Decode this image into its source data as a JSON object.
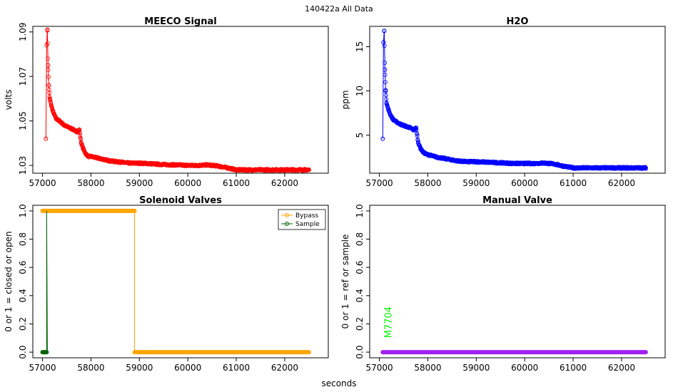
{
  "figure": {
    "title": "140422a   All Data",
    "xlabel": "seconds"
  },
  "chart_data": [
    {
      "type": "scatter",
      "title": "MEECO Signal",
      "xlabel": "",
      "ylabel": "volts",
      "xlim": [
        56800,
        62900
      ],
      "ylim": [
        1.0265,
        1.0925
      ],
      "xticks": [
        57000,
        58000,
        59000,
        60000,
        61000,
        62000
      ],
      "yticks": [
        1.03,
        1.05,
        1.07,
        1.09
      ],
      "ytick_labels": [
        "1.03",
        "1.05",
        "1.07",
        "1.09"
      ],
      "color": "#ff0000",
      "series": [
        {
          "name": "MEECO Signal",
          "x": [
            57070,
            57085,
            57100,
            57115,
            57130,
            57150,
            57180,
            57220,
            57280,
            57350,
            57450,
            57550,
            57650,
            57700,
            57760,
            57800,
            57850,
            57900,
            57950,
            58000,
            58200,
            58400,
            58600,
            58800,
            59000,
            59200,
            59400,
            59600,
            59800,
            60000,
            60200,
            60400,
            60600,
            60800,
            61000,
            61200,
            61400,
            61600,
            61800,
            62000,
            62200,
            62400,
            62500
          ],
          "y": [
            1.042,
            1.084,
            1.091,
            1.075,
            1.066,
            1.06,
            1.057,
            1.054,
            1.051,
            1.05,
            1.048,
            1.047,
            1.046,
            1.045,
            1.046,
            1.04,
            1.037,
            1.035,
            1.034,
            1.034,
            1.033,
            1.032,
            1.0315,
            1.031,
            1.031,
            1.0308,
            1.0305,
            1.0303,
            1.0302,
            1.03,
            1.03,
            1.0302,
            1.0298,
            1.029,
            1.028,
            1.028,
            1.028,
            1.028,
            1.028,
            1.028,
            1.028,
            1.028,
            1.028
          ]
        }
      ]
    },
    {
      "type": "scatter",
      "title": "H2O",
      "xlabel": "",
      "ylabel": "ppm",
      "xlim": [
        56800,
        62900
      ],
      "ylim": [
        0.7,
        17.3
      ],
      "xticks": [
        57000,
        58000,
        59000,
        60000,
        61000,
        62000
      ],
      "yticks": [
        5,
        10,
        15
      ],
      "ytick_labels": [
        "5",
        "10",
        "15"
      ],
      "color": "#0000ff",
      "series": [
        {
          "name": "H2O",
          "x": [
            57070,
            57085,
            57100,
            57115,
            57130,
            57150,
            57180,
            57220,
            57280,
            57350,
            57450,
            57550,
            57650,
            57700,
            57760,
            57800,
            57850,
            57900,
            57950,
            58000,
            58200,
            58400,
            58600,
            58800,
            59000,
            59200,
            59400,
            59600,
            59800,
            60000,
            60200,
            60400,
            60600,
            60800,
            61000,
            61200,
            61400,
            61600,
            61800,
            62000,
            62200,
            62400,
            62500
          ],
          "y": [
            4.6,
            15.5,
            16.8,
            12.4,
            10.0,
            8.6,
            8.0,
            7.4,
            6.8,
            6.5,
            6.2,
            6.0,
            5.8,
            5.6,
            5.8,
            4.2,
            3.5,
            3.1,
            2.9,
            2.8,
            2.5,
            2.3,
            2.1,
            2.0,
            2.0,
            1.95,
            1.9,
            1.85,
            1.8,
            1.8,
            1.8,
            1.85,
            1.75,
            1.5,
            1.3,
            1.3,
            1.3,
            1.3,
            1.3,
            1.3,
            1.3,
            1.3,
            1.3
          ]
        }
      ]
    },
    {
      "type": "line",
      "title": "Solenoid Valves",
      "xlabel": "",
      "ylabel": "0 or 1 = closed or open",
      "xlim": [
        56800,
        62900
      ],
      "ylim": [
        -0.04,
        1.04
      ],
      "xticks": [
        57000,
        58000,
        59000,
        60000,
        61000,
        62000
      ],
      "yticks": [
        0.0,
        0.2,
        0.4,
        0.6,
        0.8,
        1.0
      ],
      "ytick_labels": [
        "0.0",
        "0.2",
        "0.4",
        "0.6",
        "0.8",
        "1.0"
      ],
      "legend": {
        "position": "top-right",
        "entries": [
          "Bypass",
          "Sample"
        ]
      },
      "series": [
        {
          "name": "Bypass",
          "color": "#ffa500",
          "x": [
            57000,
            58900,
            58900,
            62500
          ],
          "y": [
            1,
            1,
            0,
            0
          ]
        },
        {
          "name": "Sample",
          "color": "#006400",
          "x": [
            57000,
            57085,
            57085,
            57100
          ],
          "y": [
            0,
            0,
            1,
            0
          ]
        }
      ]
    },
    {
      "type": "line",
      "title": "Manual Valve",
      "xlabel": "",
      "ylabel": "0 or 1 = ref or sample",
      "xlim": [
        56800,
        62900
      ],
      "ylim": [
        -0.04,
        1.04
      ],
      "xticks": [
        57000,
        58000,
        59000,
        60000,
        61000,
        62000
      ],
      "yticks": [
        0.0,
        0.2,
        0.4,
        0.6,
        0.8,
        1.0
      ],
      "ytick_labels": [
        "0.0",
        "0.2",
        "0.4",
        "0.6",
        "0.8",
        "1.0"
      ],
      "annotation": {
        "text": "M7704",
        "color": "#00ee00",
        "x": 57250,
        "y": 0.1
      },
      "series": [
        {
          "name": "Manual Valve",
          "color": "#a020f0",
          "x": [
            57070,
            62500
          ],
          "y": [
            0,
            0
          ]
        }
      ]
    }
  ]
}
